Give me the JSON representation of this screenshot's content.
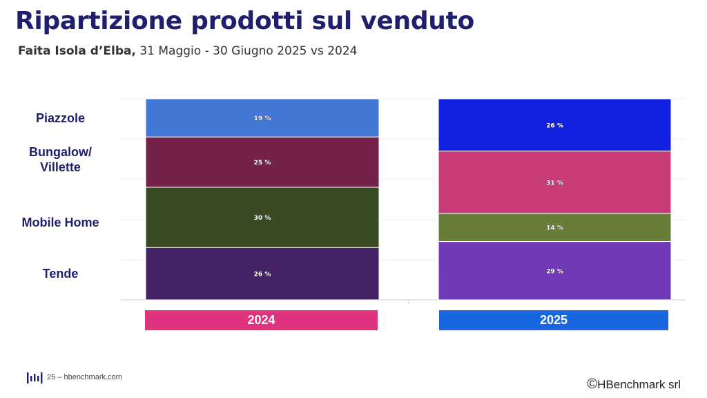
{
  "header": {
    "title": "Ripartizione prodotti sul venduto",
    "subtitle_strong": "Faita Isola d’Elba,",
    "subtitle_rest": " 31 Maggio - 30 Giugno 2025 vs 2024"
  },
  "chart_data": {
    "type": "bar",
    "stacked": true,
    "normalized": true,
    "unit": "%",
    "categories": [
      "2024",
      "2025"
    ],
    "category_colors": [
      "#e0327f",
      "#1a66e0"
    ],
    "grid": true,
    "series": [
      {
        "name": "Piazzole",
        "values": [
          19,
          26
        ],
        "colors": [
          "#4477d6",
          "#1221e0"
        ]
      },
      {
        "name": "Bungalow/ Villette",
        "values": [
          25,
          31
        ],
        "colors": [
          "#74224a",
          "#c93c7a"
        ]
      },
      {
        "name": "Mobile Home",
        "values": [
          30,
          14
        ],
        "colors": [
          "#394b22",
          "#687e38"
        ]
      },
      {
        "name": "Tende",
        "values": [
          26,
          29
        ],
        "colors": [
          "#432266",
          "#7139b8"
        ]
      }
    ],
    "value_labels": [
      [
        "19 %",
        "26 %"
      ],
      [
        "25 %",
        "31 %"
      ],
      [
        "30 %",
        "14 %"
      ],
      [
        "26 %",
        "29 %"
      ]
    ]
  },
  "labels": {
    "row_labels": [
      "Piazzole",
      "Bungalow/\nVillette",
      "Mobile Home",
      "Tende"
    ]
  },
  "footer": {
    "page_text": "25 – hbenchmark.com",
    "copyright_symbol": "©",
    "copyright_text": "HBenchmark srl"
  },
  "icons": {
    "logo": "hbenchmark-logo-icon",
    "copyright": "copyright-icon"
  }
}
